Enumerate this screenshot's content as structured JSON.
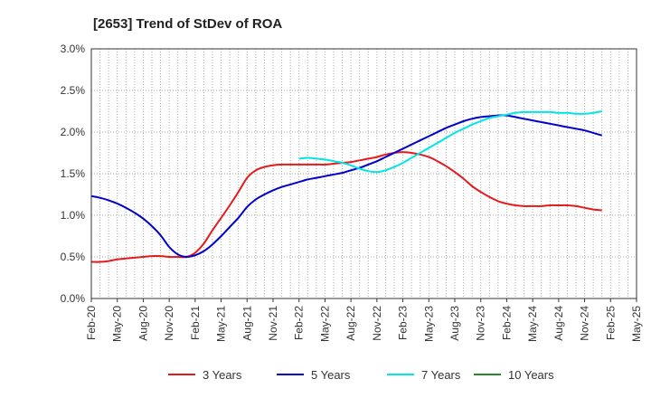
{
  "chart_data": {
    "type": "line",
    "title": "[2653]  Trend of StDev of ROA",
    "xlabel": "",
    "ylabel": "",
    "ylim": [
      0.0,
      3.0
    ],
    "y_ticks": [
      "0.0%",
      "0.5%",
      "1.0%",
      "1.5%",
      "2.0%",
      "2.5%",
      "3.0%"
    ],
    "x_ticks": [
      "Feb-20",
      "May-20",
      "Aug-20",
      "Nov-20",
      "Feb-21",
      "May-21",
      "Aug-21",
      "Nov-21",
      "Feb-22",
      "May-22",
      "Aug-22",
      "Nov-22",
      "Feb-23",
      "May-23",
      "Aug-23",
      "Nov-23",
      "Feb-24",
      "May-24",
      "Aug-24",
      "Nov-24",
      "Feb-25",
      "May-25"
    ],
    "grid": true,
    "legend_position": "bottom",
    "series": [
      {
        "name": "3 Years",
        "color": "#e41a1c",
        "points": [
          [
            "Feb-20",
            0.44
          ],
          [
            "Mar-20",
            0.44
          ],
          [
            "Apr-20",
            0.45
          ],
          [
            "May-20",
            0.47
          ],
          [
            "Jun-20",
            0.48
          ],
          [
            "Jul-20",
            0.49
          ],
          [
            "Aug-20",
            0.5
          ],
          [
            "Sep-20",
            0.51
          ],
          [
            "Oct-20",
            0.51
          ],
          [
            "Nov-20",
            0.5
          ],
          [
            "Dec-20",
            0.5
          ],
          [
            "Jan-21",
            0.5
          ],
          [
            "Feb-21",
            0.55
          ],
          [
            "Mar-21",
            0.66
          ],
          [
            "Apr-21",
            0.82
          ],
          [
            "May-21",
            0.97
          ],
          [
            "Jun-21",
            1.12
          ],
          [
            "Jul-21",
            1.28
          ],
          [
            "Aug-21",
            1.45
          ],
          [
            "Sep-21",
            1.54
          ],
          [
            "Oct-21",
            1.58
          ],
          [
            "Nov-21",
            1.6
          ],
          [
            "Dec-21",
            1.61
          ],
          [
            "Jan-22",
            1.61
          ],
          [
            "Feb-22",
            1.61
          ],
          [
            "Mar-22",
            1.61
          ],
          [
            "Apr-22",
            1.61
          ],
          [
            "May-22",
            1.61
          ],
          [
            "Jun-22",
            1.62
          ],
          [
            "Jul-22",
            1.63
          ],
          [
            "Aug-22",
            1.64
          ],
          [
            "Sep-22",
            1.66
          ],
          [
            "Oct-22",
            1.68
          ],
          [
            "Nov-22",
            1.7
          ],
          [
            "Dec-22",
            1.73
          ],
          [
            "Jan-23",
            1.75
          ],
          [
            "Feb-23",
            1.76
          ],
          [
            "Mar-23",
            1.75
          ],
          [
            "Apr-23",
            1.73
          ],
          [
            "May-23",
            1.7
          ],
          [
            "Jun-23",
            1.65
          ],
          [
            "Jul-23",
            1.59
          ],
          [
            "Aug-23",
            1.52
          ],
          [
            "Sep-23",
            1.44
          ],
          [
            "Oct-23",
            1.35
          ],
          [
            "Nov-23",
            1.28
          ],
          [
            "Dec-23",
            1.22
          ],
          [
            "Jan-24",
            1.17
          ],
          [
            "Feb-24",
            1.14
          ],
          [
            "Mar-24",
            1.12
          ],
          [
            "Apr-24",
            1.11
          ],
          [
            "May-24",
            1.11
          ],
          [
            "Jun-24",
            1.11
          ],
          [
            "Jul-24",
            1.12
          ],
          [
            "Aug-24",
            1.12
          ],
          [
            "Sep-24",
            1.12
          ],
          [
            "Oct-24",
            1.11
          ],
          [
            "Nov-24",
            1.09
          ],
          [
            "Dec-24",
            1.07
          ],
          [
            "Jan-25",
            1.06
          ]
        ]
      },
      {
        "name": "5 Years",
        "color": "#0000cc",
        "points": [
          [
            "Feb-20",
            1.23
          ],
          [
            "Mar-20",
            1.21
          ],
          [
            "Apr-20",
            1.18
          ],
          [
            "May-20",
            1.14
          ],
          [
            "Jun-20",
            1.09
          ],
          [
            "Jul-20",
            1.03
          ],
          [
            "Aug-20",
            0.96
          ],
          [
            "Sep-20",
            0.87
          ],
          [
            "Oct-20",
            0.76
          ],
          [
            "Nov-20",
            0.62
          ],
          [
            "Dec-20",
            0.53
          ],
          [
            "Jan-21",
            0.5
          ],
          [
            "Feb-21",
            0.52
          ],
          [
            "Mar-21",
            0.57
          ],
          [
            "Apr-21",
            0.65
          ],
          [
            "May-21",
            0.75
          ],
          [
            "Jun-21",
            0.86
          ],
          [
            "Jul-21",
            0.97
          ],
          [
            "Aug-21",
            1.1
          ],
          [
            "Sep-21",
            1.19
          ],
          [
            "Oct-21",
            1.25
          ],
          [
            "Nov-21",
            1.3
          ],
          [
            "Dec-21",
            1.34
          ],
          [
            "Jan-22",
            1.37
          ],
          [
            "Feb-22",
            1.4
          ],
          [
            "Mar-22",
            1.43
          ],
          [
            "Apr-22",
            1.45
          ],
          [
            "May-22",
            1.47
          ],
          [
            "Jun-22",
            1.49
          ],
          [
            "Jul-22",
            1.51
          ],
          [
            "Aug-22",
            1.54
          ],
          [
            "Sep-22",
            1.57
          ],
          [
            "Oct-22",
            1.61
          ],
          [
            "Nov-22",
            1.65
          ],
          [
            "Dec-22",
            1.7
          ],
          [
            "Jan-23",
            1.75
          ],
          [
            "Feb-23",
            1.8
          ],
          [
            "Mar-23",
            1.85
          ],
          [
            "Apr-23",
            1.9
          ],
          [
            "May-23",
            1.95
          ],
          [
            "Jun-23",
            2.0
          ],
          [
            "Jul-23",
            2.05
          ],
          [
            "Aug-23",
            2.09
          ],
          [
            "Sep-23",
            2.13
          ],
          [
            "Oct-23",
            2.16
          ],
          [
            "Nov-23",
            2.18
          ],
          [
            "Dec-23",
            2.19
          ],
          [
            "Jan-24",
            2.2
          ],
          [
            "Feb-24",
            2.2
          ],
          [
            "Mar-24",
            2.18
          ],
          [
            "Apr-24",
            2.16
          ],
          [
            "May-24",
            2.14
          ],
          [
            "Jun-24",
            2.12
          ],
          [
            "Jul-24",
            2.1
          ],
          [
            "Aug-24",
            2.08
          ],
          [
            "Sep-24",
            2.06
          ],
          [
            "Oct-24",
            2.04
          ],
          [
            "Nov-24",
            2.02
          ],
          [
            "Dec-24",
            1.99
          ],
          [
            "Jan-25",
            1.96
          ]
        ]
      },
      {
        "name": "7 Years",
        "color": "#00e5e5",
        "points": [
          [
            "Feb-22",
            1.68
          ],
          [
            "Mar-22",
            1.69
          ],
          [
            "Apr-22",
            1.68
          ],
          [
            "May-22",
            1.67
          ],
          [
            "Jun-22",
            1.65
          ],
          [
            "Jul-22",
            1.63
          ],
          [
            "Aug-22",
            1.6
          ],
          [
            "Sep-22",
            1.56
          ],
          [
            "Oct-22",
            1.53
          ],
          [
            "Nov-22",
            1.52
          ],
          [
            "Dec-22",
            1.54
          ],
          [
            "Jan-23",
            1.58
          ],
          [
            "Feb-23",
            1.63
          ],
          [
            "Mar-23",
            1.69
          ],
          [
            "Apr-23",
            1.75
          ],
          [
            "May-23",
            1.81
          ],
          [
            "Jun-23",
            1.87
          ],
          [
            "Jul-23",
            1.93
          ],
          [
            "Aug-23",
            1.99
          ],
          [
            "Sep-23",
            2.04
          ],
          [
            "Oct-23",
            2.09
          ],
          [
            "Nov-23",
            2.13
          ],
          [
            "Dec-23",
            2.17
          ],
          [
            "Jan-24",
            2.19
          ],
          [
            "Feb-24",
            2.21
          ],
          [
            "Mar-24",
            2.23
          ],
          [
            "Apr-24",
            2.24
          ],
          [
            "May-24",
            2.24
          ],
          [
            "Jun-24",
            2.24
          ],
          [
            "Jul-24",
            2.24
          ],
          [
            "Aug-24",
            2.23
          ],
          [
            "Sep-24",
            2.23
          ],
          [
            "Oct-24",
            2.22
          ],
          [
            "Nov-24",
            2.22
          ],
          [
            "Dec-24",
            2.23
          ],
          [
            "Jan-25",
            2.25
          ]
        ]
      },
      {
        "name": "10 Years",
        "color": "#228b22",
        "points": []
      }
    ]
  }
}
